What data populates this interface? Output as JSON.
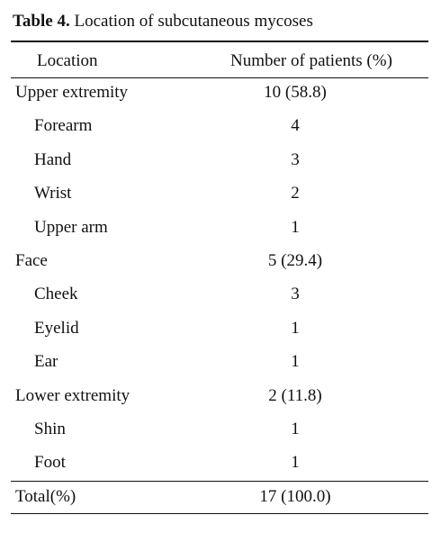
{
  "table": {
    "label": "Table 4.",
    "caption": "Location of subcutaneous mycoses",
    "headers": [
      "Location",
      "Number of patients (%)"
    ],
    "rows": [
      {
        "location": "Upper extremity",
        "patients": "10 (58.8)",
        "indent": false
      },
      {
        "location": "Forearm",
        "patients": "4",
        "indent": true
      },
      {
        "location": "Hand",
        "patients": "3",
        "indent": true
      },
      {
        "location": "Wrist",
        "patients": "2",
        "indent": true
      },
      {
        "location": "Upper arm",
        "patients": "1",
        "indent": true
      },
      {
        "location": "Face",
        "patients": "5 (29.4)",
        "indent": false
      },
      {
        "location": "Cheek",
        "patients": "3",
        "indent": true
      },
      {
        "location": "Eyelid",
        "patients": "1",
        "indent": true
      },
      {
        "location": "Ear",
        "patients": "1",
        "indent": true
      },
      {
        "location": "Lower extremity",
        "patients": "2 (11.8)",
        "indent": false
      },
      {
        "location": "Shin",
        "patients": "1",
        "indent": true
      },
      {
        "location": "Foot",
        "patients": "1",
        "indent": true
      }
    ],
    "total": {
      "location": "Total(%)",
      "patients": "17 (100.0)"
    }
  }
}
